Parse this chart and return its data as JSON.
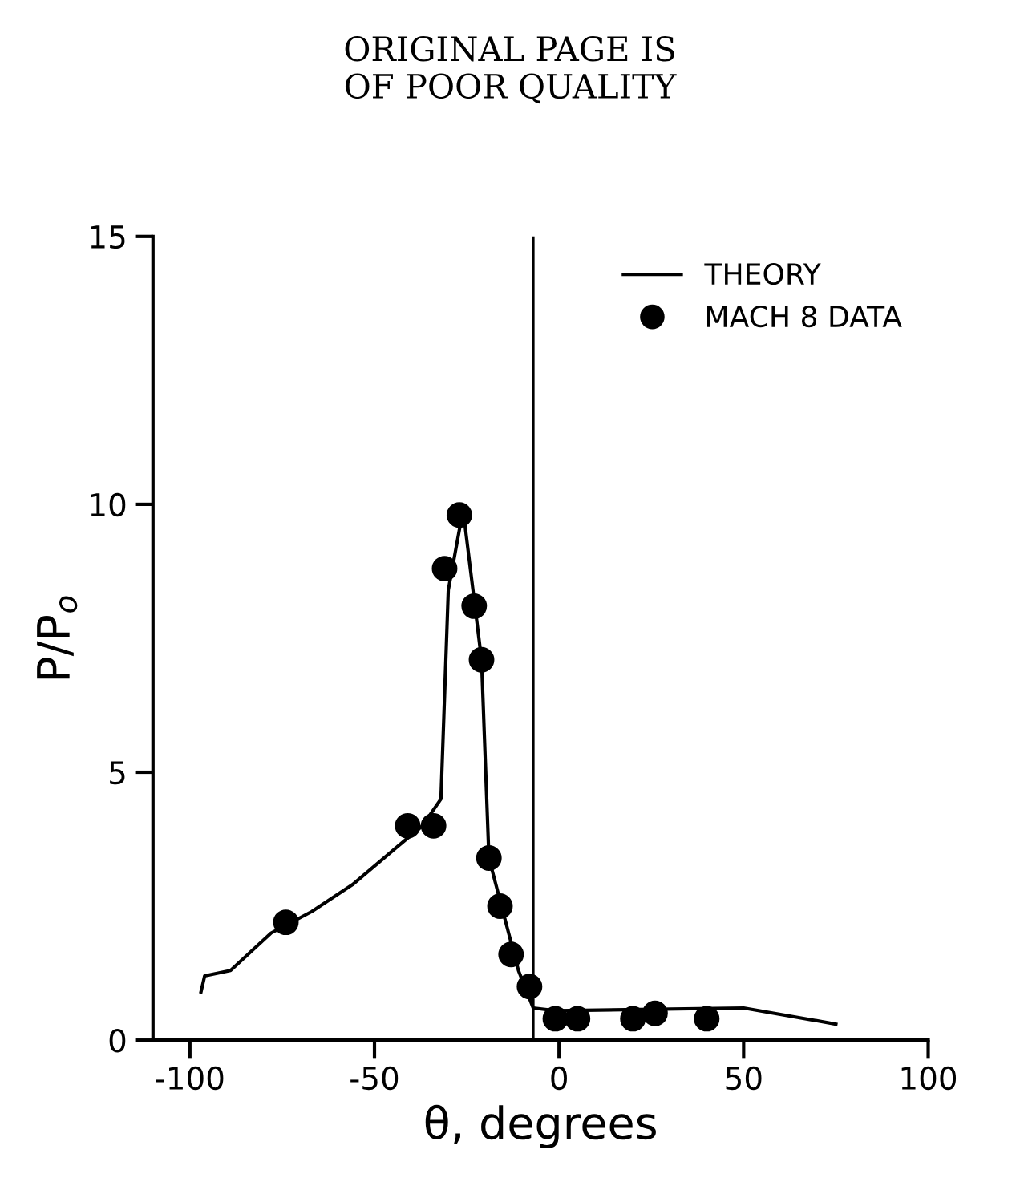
{
  "chart_data": {
    "type": "scatter",
    "xlabel": "θ, degrees",
    "ylabel": "P/P$_{o}$",
    "annotations": [
      "ORIGINAL PAGE IS\nOF POOR QUALITY"
    ],
    "series": [
      {
        "name": "THEORY",
        "type": "line",
        "color": "#000000",
        "marker": "none",
        "line_style": "solid",
        "x": [
          75,
          50,
          -1,
          -7,
          -11,
          -19,
          -21,
          -26,
          -30,
          -32,
          -37,
          -44,
          -56,
          -67,
          -78,
          -89,
          -96,
          -97
        ],
        "values": [
          0.3,
          0.6,
          0.55,
          0.6,
          1.3,
          3.4,
          7.1,
          9.9,
          8.4,
          4.5,
          4.0,
          3.6,
          2.9,
          2.4,
          2.0,
          1.3,
          1.2,
          0.9
        ]
      },
      {
        "name": "MACH 8 DATA",
        "color": "#000000",
        "marker": "circle",
        "x": [
          40,
          26,
          20,
          5,
          -1,
          -8,
          -13,
          -16,
          -19,
          -21,
          -23,
          -27,
          -31,
          -34,
          -41,
          -74
        ],
        "values": [
          0.4,
          0.5,
          0.4,
          0.4,
          0.4,
          1.0,
          1.6,
          2.5,
          3.4,
          7.1,
          8.1,
          9.8,
          8.8,
          4.0,
          4.0,
          2.2
        ]
      }
    ],
    "ref_lines": [
      {
        "axis": "x",
        "value": -7,
        "color": "#000000",
        "line_style": "solid"
      }
    ],
    "xlim": [
      -110,
      100
    ],
    "xticks": [
      -100,
      -50,
      0,
      50,
      100
    ],
    "ylim": [
      0,
      15
    ],
    "yticks": [
      0,
      5,
      10,
      15
    ],
    "grid": false,
    "legend": "top right"
  }
}
